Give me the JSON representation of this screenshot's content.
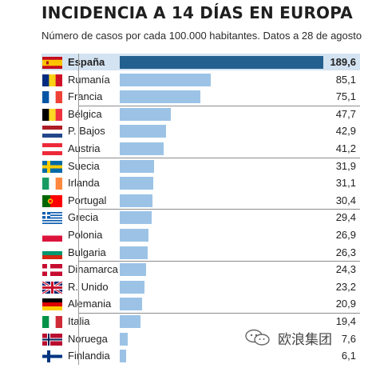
{
  "chart_data": {
    "type": "bar",
    "orientation": "horizontal",
    "title": "INCIDENCIA A 14 DÍAS EN EUROPA",
    "subtitle": "Número de casos por cada 100.000 habitantes. Datos a 28 de agosto",
    "categories": [
      "España",
      "Rumanía",
      "Francia",
      "Bélgica",
      "P. Bajos",
      "Austria",
      "Suecia",
      "Irlanda",
      "Portugal",
      "Grecia",
      "Polonia",
      "Bulgaria",
      "Dinamarca",
      "R. Unido",
      "Alemania",
      "Italia",
      "Noruega",
      "Finlandia"
    ],
    "values": [
      189.6,
      85.1,
      75.1,
      47.7,
      42.9,
      41.2,
      31.9,
      31.1,
      30.4,
      29.4,
      26.9,
      26.3,
      24.3,
      23.2,
      20.9,
      19.4,
      7.6,
      6.1
    ],
    "value_labels": [
      "189,6",
      "85,1",
      "75,1",
      "47,7",
      "42,9",
      "41,2",
      "31,9",
      "31,1",
      "30,4",
      "29,4",
      "26,9",
      "26,3",
      "24,3",
      "23,2",
      "20,9",
      "19,4",
      "7,6",
      "6,1"
    ],
    "highlight": "España",
    "xlim": [
      0,
      189.6
    ],
    "flags": [
      "spain-flag-icon",
      "romania-flag-icon",
      "france-flag-icon",
      "belgium-flag-icon",
      "netherlands-flag-icon",
      "austria-flag-icon",
      "sweden-flag-icon",
      "ireland-flag-icon",
      "portugal-flag-icon",
      "greece-flag-icon",
      "poland-flag-icon",
      "bulgaria-flag-icon",
      "denmark-flag-icon",
      "uk-flag-icon",
      "germany-flag-icon",
      "italy-flag-icon",
      "norway-flag-icon",
      "finland-flag-icon"
    ],
    "colors": {
      "highlight_bar": "#24608f",
      "bar": "#9cc3e6",
      "highlight_row": "#d3e3f2"
    }
  },
  "watermark": {
    "text": "欧浪集团",
    "icon": "wechat-icon"
  }
}
